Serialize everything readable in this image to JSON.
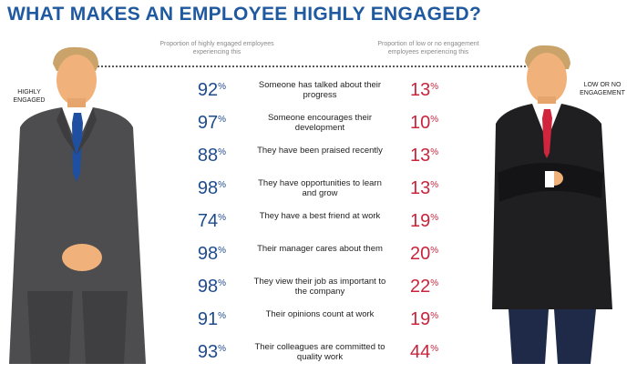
{
  "title": "WHAT MAKES AN EMPLOYEE HIGHLY ENGAGED?",
  "left_subheading": "Proportion of highly engaged employees experiencing this",
  "right_subheading": "Proportion of low or no engagement employees experiencing this",
  "left_label": "HIGHLY ENGAGED",
  "right_label": "LOW OR NO ENGAGEMENT",
  "percent_sign": "%",
  "rows": [
    {
      "high": "92",
      "desc": "Someone has talked about their progress",
      "low": "13"
    },
    {
      "high": "97",
      "desc": "Someone encourages their development",
      "low": "10"
    },
    {
      "high": "88",
      "desc": "They have been praised recently",
      "low": "13"
    },
    {
      "high": "98",
      "desc": "They have opportunities to learn and grow",
      "low": "13"
    },
    {
      "high": "74",
      "desc": "They have a best friend at work",
      "low": "19"
    },
    {
      "high": "98",
      "desc": "Their manager cares about them",
      "low": "20"
    },
    {
      "high": "98",
      "desc": "They view their job as important to the company",
      "low": "22"
    },
    {
      "high": "91",
      "desc": "Their opinions count at work",
      "low": "19"
    },
    {
      "high": "93",
      "desc": "Their colleagues are committed to quality work",
      "low": "44"
    }
  ],
  "colors": {
    "title": "#1f5aa0",
    "high": "#1e4c8c",
    "low": "#c8253c",
    "left_tie": "#1e4fa0",
    "right_tie": "#d0253c"
  }
}
